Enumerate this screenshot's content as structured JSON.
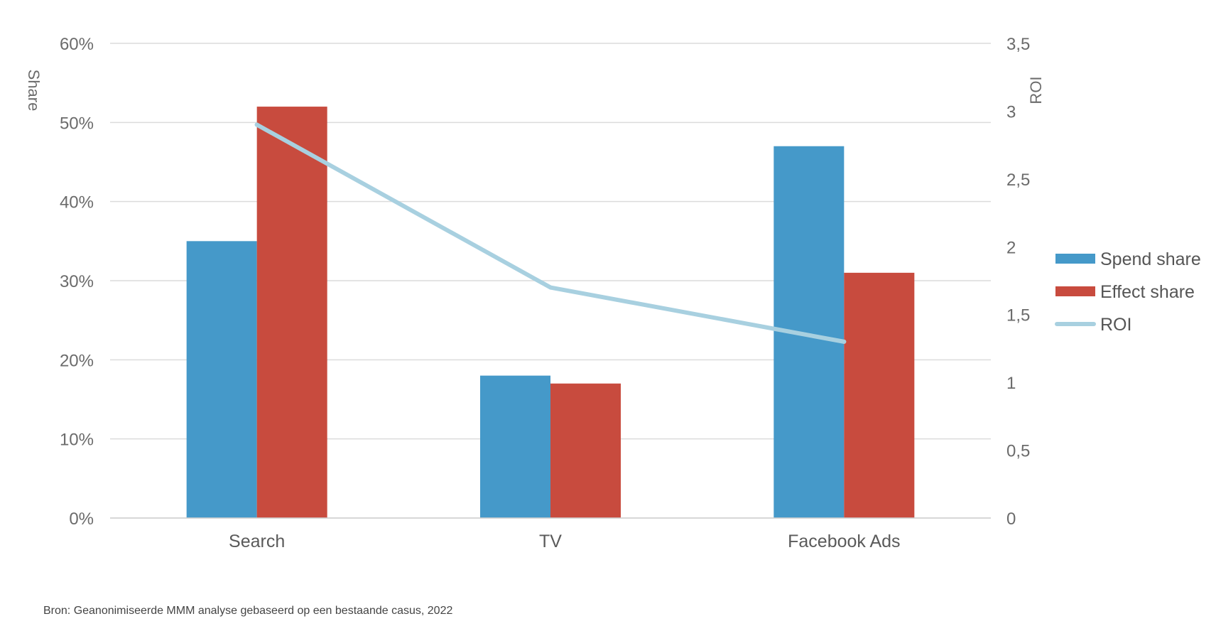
{
  "chart_data": {
    "type": "bar",
    "categories": [
      "Search",
      "TV",
      "Facebook Ads"
    ],
    "series": [
      {
        "name": "Spend share",
        "kind": "bar",
        "axis": "left",
        "color": "#4599c9",
        "values": [
          35,
          18,
          47
        ]
      },
      {
        "name": "Effect share",
        "kind": "bar",
        "axis": "left",
        "color": "#c84b3e",
        "values": [
          52,
          17,
          31
        ]
      },
      {
        "name": "ROI",
        "kind": "line",
        "axis": "right",
        "color": "#a8d0e0",
        "values": [
          2.9,
          1.7,
          1.3
        ]
      }
    ],
    "ylabel": "Share",
    "y2label": "ROI",
    "ylim": [
      0,
      60
    ],
    "y2lim": [
      0,
      3.5
    ],
    "yticks": [
      "0%",
      "10%",
      "20%",
      "30%",
      "40%",
      "50%",
      "60%"
    ],
    "y2ticks": [
      "0",
      "0,5",
      "1",
      "1,5",
      "2",
      "2,5",
      "3",
      "3,5"
    ],
    "grid": true,
    "legend_position": "right"
  },
  "source": "Bron: Geanonimiseerde MMM analyse gebaseerd op een bestaande casus, 2022"
}
